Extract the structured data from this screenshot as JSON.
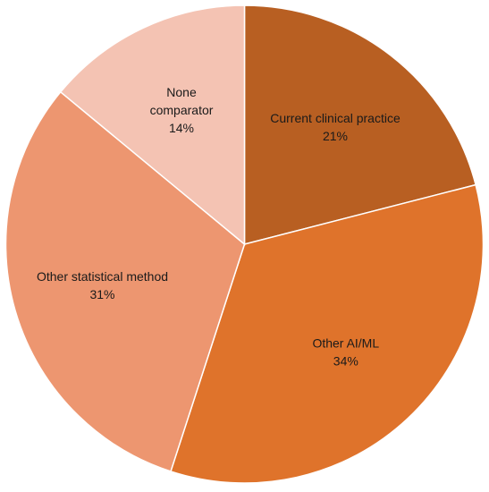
{
  "chart_data": {
    "type": "pie",
    "start_angle_deg": 0,
    "direction": "clockwise",
    "slices": [
      {
        "label_lines": [
          "Current clinical practice"
        ],
        "percent_label": "21%",
        "value": 21,
        "color": "#b85f22"
      },
      {
        "label_lines": [
          "Other AI/ML"
        ],
        "percent_label": "34%",
        "value": 34,
        "color": "#df732b"
      },
      {
        "label_lines": [
          "Other statistical method"
        ],
        "percent_label": "31%",
        "value": 31,
        "color": "#ed9670"
      },
      {
        "label_lines": [
          "None",
          "comparator"
        ],
        "percent_label": "14%",
        "value": 14,
        "color": "#f4c3b3"
      }
    ]
  }
}
